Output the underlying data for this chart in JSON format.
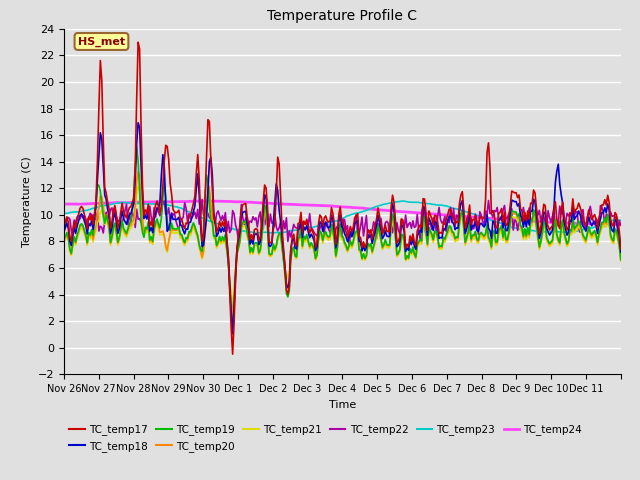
{
  "title": "Temperature Profile C",
  "xlabel": "Time",
  "ylabel": "Temperature (C)",
  "ylim": [
    -2,
    24
  ],
  "yticks": [
    -2,
    0,
    2,
    4,
    6,
    8,
    10,
    12,
    14,
    16,
    18,
    20,
    22,
    24
  ],
  "annotation": "HS_met",
  "series": {
    "TC_temp17": {
      "color": "#cc0000",
      "lw": 1.2
    },
    "TC_temp18": {
      "color": "#0000cc",
      "lw": 1.2
    },
    "TC_temp19": {
      "color": "#00bb00",
      "lw": 1.2
    },
    "TC_temp20": {
      "color": "#ff8800",
      "lw": 1.2
    },
    "TC_temp21": {
      "color": "#dddd00",
      "lw": 1.2
    },
    "TC_temp22": {
      "color": "#aa00aa",
      "lw": 1.2
    },
    "TC_temp23": {
      "color": "#00cccc",
      "lw": 1.2
    },
    "TC_temp24": {
      "color": "#ff44ff",
      "lw": 2.0
    }
  },
  "background_color": "#e0e0e0",
  "plot_bg_color": "#e0e0e0",
  "grid_color": "#ffffff",
  "legend_bg": "#ffff99",
  "legend_border": "#996633",
  "xtick_labels": [
    "Nov 26",
    "Nov 27",
    "Nov 28",
    "Nov 29",
    "Nov 30",
    "Dec 1",
    "Dec 2",
    "Dec 3",
    "Dec 4",
    "Dec 5",
    "Dec 6",
    "Dec 7",
    "Dec 8",
    "Dec 9",
    "Dec 10",
    "Dec 11"
  ],
  "n_days": 16
}
